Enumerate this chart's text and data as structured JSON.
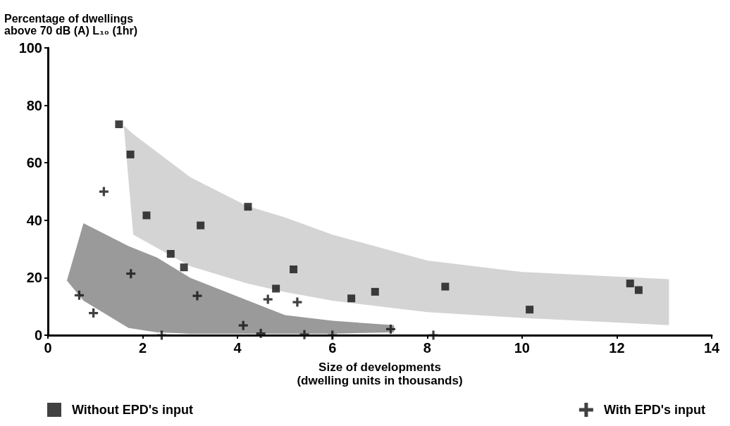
{
  "chart_data": {
    "type": "scatter",
    "xlabel": "Size of developments\n(dwelling units in thousands)",
    "ylabel": "Percentage of dwellings\nabove 70 dB (A) L₁₀ (1hr)",
    "xlim": [
      0,
      14
    ],
    "xticks": [
      0,
      2,
      4,
      6,
      8,
      10,
      12,
      14
    ],
    "ylim": [
      0,
      100
    ],
    "yticks": [
      0,
      20,
      40,
      60,
      80,
      100
    ],
    "grid": false,
    "legend": "bottom",
    "series": [
      {
        "type": "area",
        "color": "#d4d4d4",
        "x": [
          1.6,
          1.8,
          3,
          4.2,
          5,
          6,
          8,
          10,
          13.1,
          13.1,
          10,
          8,
          6,
          5,
          4.2,
          3,
          1.8
        ],
        "values": [
          73,
          70,
          55,
          45,
          41,
          35,
          26,
          22,
          19.5,
          3.5,
          6,
          8,
          12,
          15,
          18,
          24,
          35
        ]
      },
      {
        "type": "area",
        "color": "#9a9a9a",
        "x": [
          0.4,
          0.75,
          1.7,
          2.3,
          3,
          4.3,
          5,
          6,
          7.3,
          7.3,
          6,
          5,
          4.3,
          3,
          2.3,
          1.7,
          0.75
        ],
        "values": [
          19,
          39,
          31,
          27,
          20,
          11.5,
          7,
          5,
          3.5,
          1,
          0.5,
          0.5,
          0.5,
          0.5,
          1,
          2.5,
          12
        ]
      },
      {
        "name": "Without EPD's input",
        "color": "#111111",
        "marker": "square",
        "x": [
          1.5,
          1.74,
          2.08,
          3.22,
          4.22,
          2.59,
          2.87,
          5.18,
          4.81,
          6.4,
          6.9,
          8.38,
          10.16,
          12.28,
          12.46
        ],
        "values": [
          73.4,
          62.9,
          41.7,
          38.2,
          44.7,
          28.3,
          23.6,
          22.9,
          16.2,
          12.8,
          15.1,
          16.9,
          8.9,
          18,
          15.7
        ]
      },
      {
        "name": "With EPD's input",
        "color": "#111111",
        "marker": "cross",
        "x": [
          1.18,
          0.66,
          0.96,
          1.75,
          3.15,
          4.12,
          4.49,
          2.4,
          4.64,
          5.26,
          5.41,
          7.23,
          8.13,
          6.0
        ],
        "values": [
          50,
          13.9,
          7.7,
          21.4,
          13.7,
          3.4,
          0.6,
          0,
          12.5,
          11.5,
          0.2,
          2.1,
          0,
          0
        ]
      }
    ]
  }
}
